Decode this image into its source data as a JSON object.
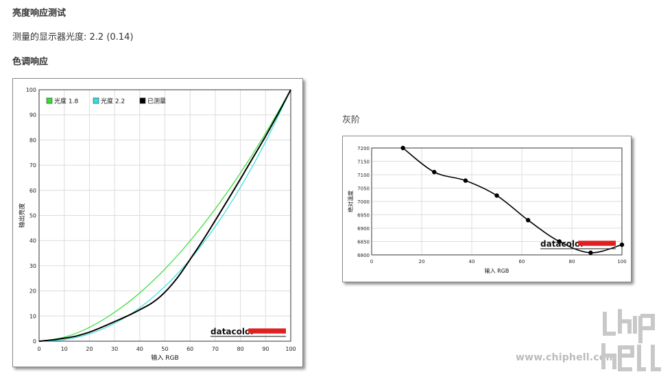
{
  "page": {
    "title": "亮度响应测试",
    "gamma_line": "测量的显示器光度: 2.2 (0.14)",
    "tone_title": "色调响应",
    "gray_title": "灰阶"
  },
  "brand": {
    "datacolor": "datacolor",
    "accent": "#e02020"
  },
  "watermark": {
    "url": "www.chiphell.com",
    "logo_text": "chip hell"
  },
  "chart_data": [
    {
      "type": "line",
      "xlabel": "输入 RGB",
      "ylabel": "输出亮度",
      "xlim": [
        0,
        100
      ],
      "ylim": [
        0,
        100
      ],
      "xticks": [
        0,
        10,
        20,
        30,
        40,
        50,
        60,
        70,
        80,
        90,
        100
      ],
      "yticks": [
        0,
        10,
        20,
        30,
        40,
        50,
        60,
        70,
        80,
        90,
        100
      ],
      "grid": true,
      "legend_position": "top-left",
      "series": [
        {
          "name": "光度 1.8",
          "color": "#33dd33",
          "x": [
            0,
            10,
            20,
            30,
            40,
            50,
            60,
            70,
            80,
            90,
            100
          ],
          "y": [
            0,
            1.6,
            5.5,
            11.5,
            19.2,
            28.7,
            39.9,
            52.6,
            66.9,
            82.7,
            100
          ]
        },
        {
          "name": "光度 2.2",
          "color": "#33dddd",
          "x": [
            0,
            10,
            20,
            30,
            40,
            50,
            60,
            70,
            80,
            90,
            100
          ],
          "y": [
            0,
            0.6,
            2.9,
            7.1,
            13.3,
            21.8,
            32.5,
            45.6,
            61.2,
            79.3,
            100
          ]
        },
        {
          "name": "已测量",
          "color": "#000000",
          "x": [
            0,
            5,
            10,
            15,
            20,
            25,
            30,
            35,
            40,
            45,
            50,
            55,
            60,
            65,
            70,
            75,
            80,
            85,
            90,
            95,
            100
          ],
          "y": [
            0,
            0.5,
            1.2,
            2.1,
            3.6,
            5.6,
            7.8,
            10.0,
            12.5,
            15.3,
            19.5,
            25.3,
            32.5,
            40.0,
            48.0,
            56.2,
            64.5,
            73.0,
            81.5,
            90.5,
            100
          ]
        }
      ]
    },
    {
      "type": "line",
      "xlabel": "输入 RGB",
      "ylabel": "绝对温度",
      "xlim": [
        0,
        100
      ],
      "ylim": [
        6800,
        7200
      ],
      "xticks": [
        0,
        20,
        40,
        60,
        80,
        100
      ],
      "yticks": [
        6800,
        6850,
        6900,
        6950,
        7000,
        7050,
        7100,
        7150,
        7200
      ],
      "grid": true,
      "series": [
        {
          "color": "#000000",
          "x": [
            12.5,
            25,
            37.5,
            50,
            62.5,
            75,
            87.5,
            100
          ],
          "y": [
            7200,
            7110,
            7078,
            7022,
            6930,
            6850,
            6808,
            6838
          ]
        }
      ]
    }
  ]
}
